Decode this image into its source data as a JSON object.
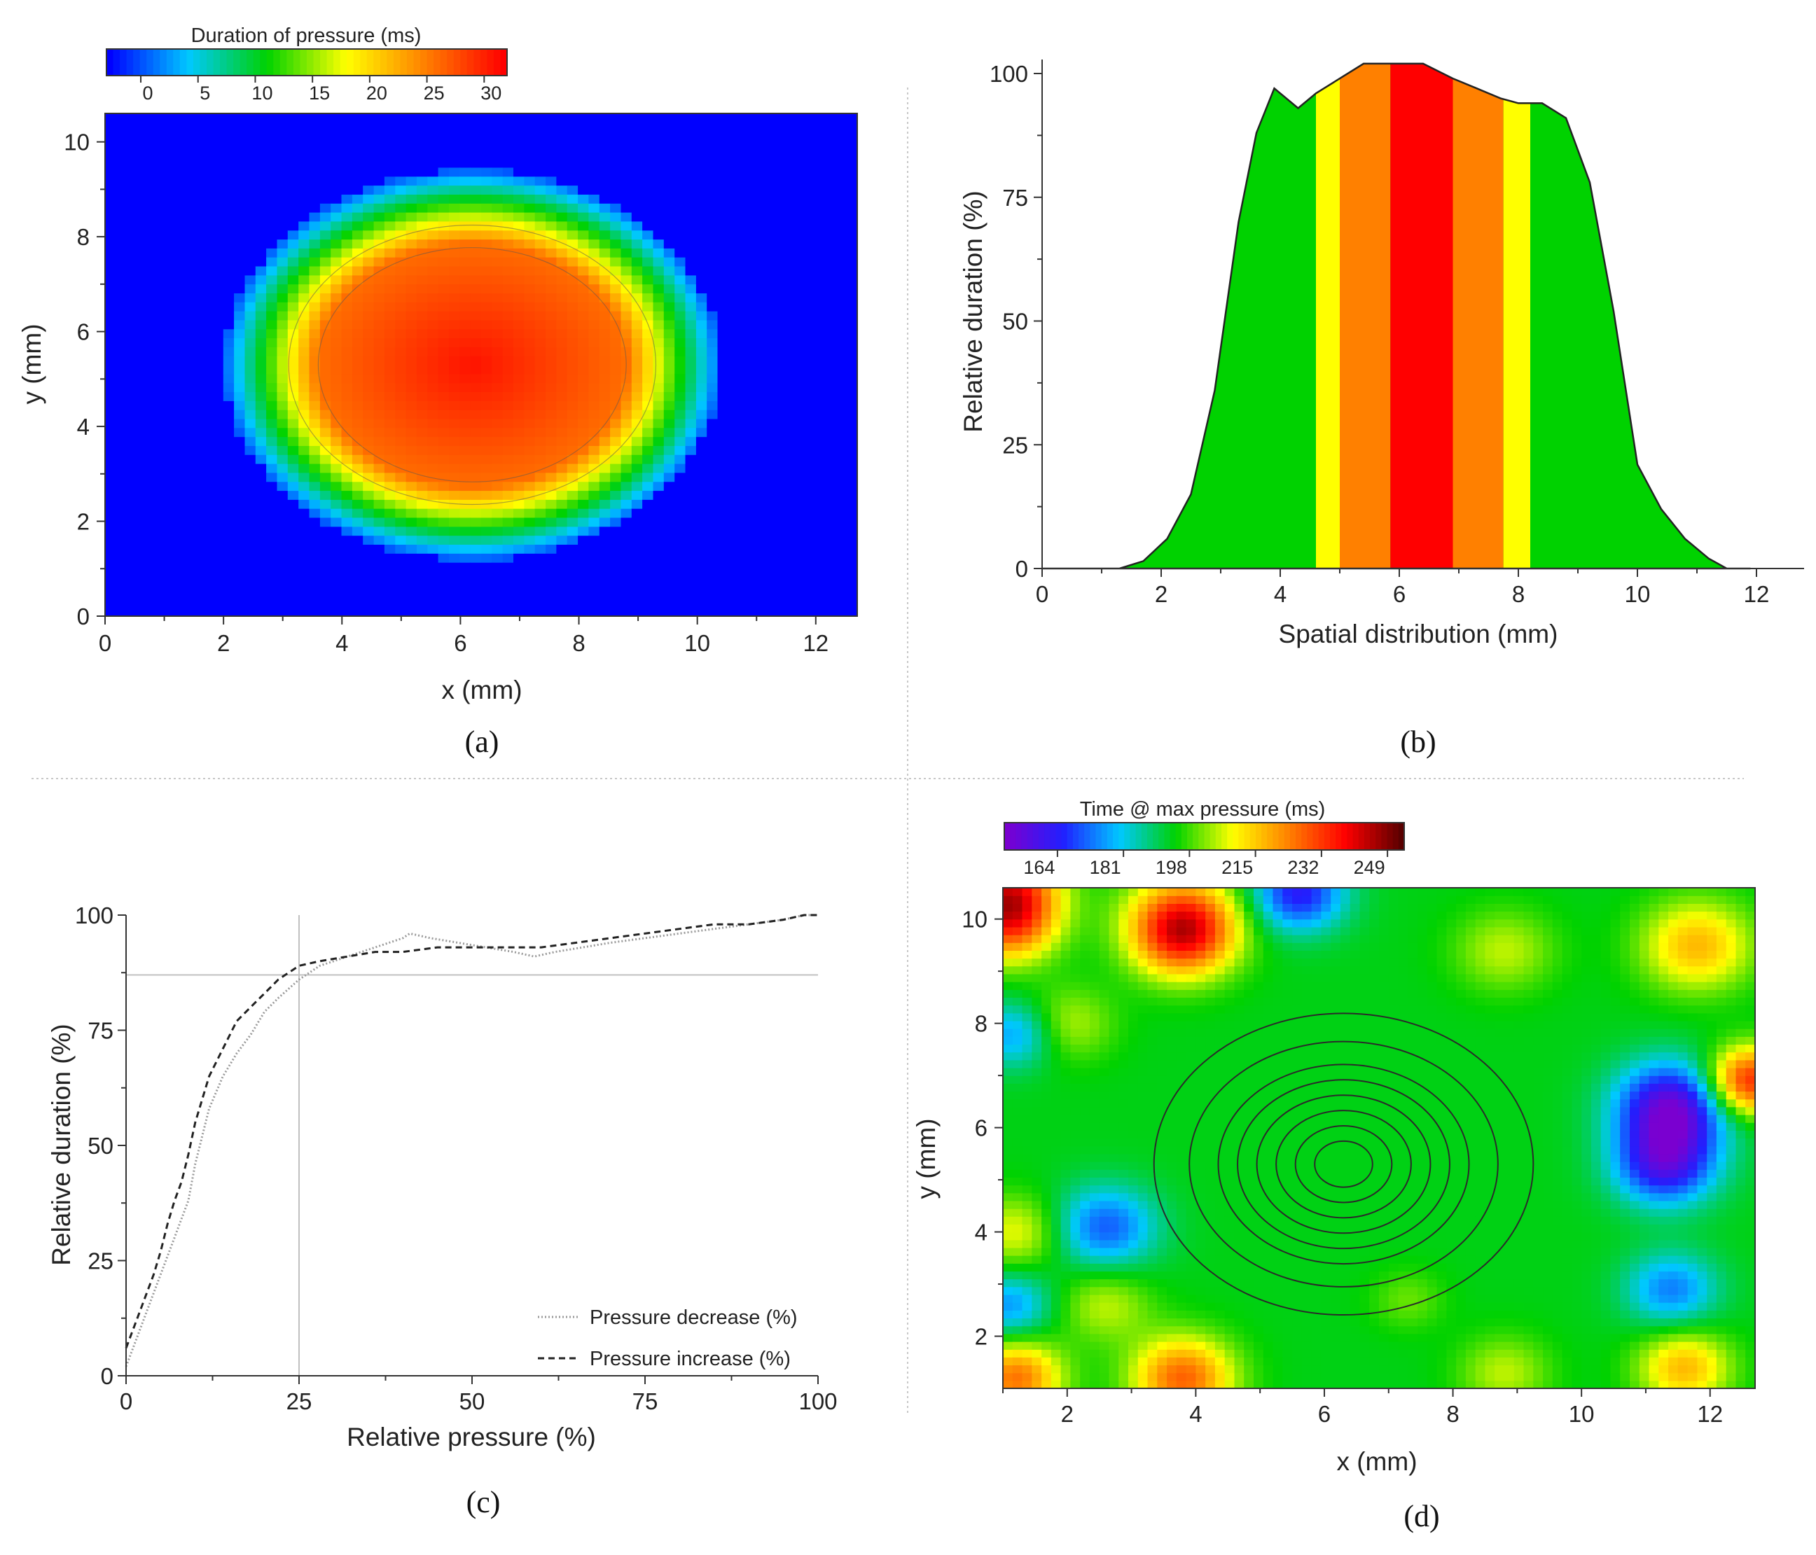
{
  "chart_data": [
    {
      "panel": "(a)",
      "type": "heatmap",
      "colorbar": {
        "title": "Duration of pressure (ms)",
        "ticks": [
          0,
          5,
          10,
          15,
          20,
          25,
          30
        ],
        "range": [
          -3,
          32
        ]
      },
      "xlabel": "x (mm)",
      "ylabel": "y (mm)",
      "xlim": [
        0,
        12.7
      ],
      "ylim": [
        0,
        10.6
      ],
      "xticks": [
        0,
        2,
        4,
        6,
        8,
        10,
        12
      ],
      "yticks": [
        0,
        2,
        4,
        6,
        8,
        10
      ],
      "peak": {
        "x": 6.2,
        "y": 5.3,
        "value": 31
      },
      "background_value": -3,
      "colors": [
        "#0000ff",
        "#00c8ff",
        "#00d200",
        "#ffff00",
        "#ff8000",
        "#ff0000"
      ]
    },
    {
      "panel": "(b)",
      "type": "area",
      "xlabel": "Spatial distribution (mm)",
      "ylabel": "Relative duration (%)",
      "xlim": [
        0,
        12.8
      ],
      "ylim": [
        0,
        100
      ],
      "xticks": [
        0,
        2,
        4,
        6,
        8,
        10,
        12
      ],
      "yticks": [
        0,
        25,
        50,
        75,
        100
      ],
      "x": [
        0,
        1.3,
        1.7,
        2.1,
        2.5,
        2.9,
        3.3,
        3.6,
        3.9,
        4.3,
        4.6,
        5.0,
        5.4,
        5.9,
        6.4,
        6.9,
        7.3,
        7.7,
        8.0,
        8.4,
        8.8,
        9.2,
        9.6,
        10.0,
        10.4,
        10.8,
        11.2,
        11.5,
        11.9
      ],
      "y": [
        0,
        0,
        1.5,
        6,
        15,
        36,
        70,
        88,
        97,
        93,
        96,
        99,
        102,
        102,
        102,
        99,
        97,
        95,
        94,
        94,
        91,
        78,
        52,
        21,
        12,
        6,
        2,
        0,
        0
      ],
      "bands": [
        {
          "x0": 4.6,
          "x1": 5.0,
          "color": "#ffff00"
        },
        {
          "x0": 5.0,
          "x1": 5.85,
          "color": "#ff8000"
        },
        {
          "x0": 5.85,
          "x1": 6.9,
          "color": "#ff0000"
        },
        {
          "x0": 6.9,
          "x1": 7.75,
          "color": "#ff8000"
        },
        {
          "x0": 7.75,
          "x1": 8.2,
          "color": "#ffff00"
        }
      ],
      "fill_color": "#00d200"
    },
    {
      "panel": "(c)",
      "type": "line",
      "xlabel": "Relative pressure (%)",
      "ylabel": "Relative duration (%)",
      "xlim": [
        0,
        100
      ],
      "ylim": [
        0,
        100
      ],
      "xticks": [
        0,
        25,
        50,
        75,
        100
      ],
      "yticks": [
        0,
        25,
        50,
        75,
        100
      ],
      "reference_lines": {
        "x": 25,
        "y": 87
      },
      "legend_position": "bottom-right",
      "series": [
        {
          "name": "Pressure decrease (%)",
          "style": "dotted",
          "x": [
            0,
            1,
            2,
            3,
            4,
            5,
            6,
            7,
            8,
            9,
            10,
            12,
            14,
            16,
            18,
            20,
            22,
            25,
            28,
            32,
            36,
            40,
            41,
            44,
            48,
            52,
            56,
            59,
            62,
            66,
            70,
            75,
            80,
            85,
            90,
            95,
            98,
            100
          ],
          "y": [
            2,
            6,
            10,
            14,
            18,
            22,
            26,
            30,
            34,
            38,
            46,
            58,
            65,
            70,
            74,
            79,
            82,
            86,
            89,
            91,
            93,
            95,
            96,
            95,
            94,
            93,
            92,
            91,
            92,
            93,
            94,
            95,
            96,
            97,
            98,
            99,
            100,
            100
          ]
        },
        {
          "name": "Pressure increase (%)",
          "style": "dashed",
          "x": [
            0,
            1,
            2,
            3,
            4,
            5,
            6,
            7,
            8,
            9,
            10,
            12,
            14,
            16,
            18,
            20,
            22,
            25,
            28,
            32,
            36,
            40,
            45,
            50,
            55,
            60,
            65,
            70,
            75,
            80,
            85,
            90,
            95,
            98,
            100
          ],
          "y": [
            6,
            10,
            14,
            18,
            22,
            27,
            33,
            38,
            42,
            48,
            55,
            65,
            71,
            77,
            80,
            83,
            86,
            89,
            90,
            91,
            92,
            92,
            93,
            93,
            93,
            93,
            94,
            95,
            96,
            97,
            98,
            98,
            99,
            100,
            100
          ]
        }
      ]
    },
    {
      "panel": "(d)",
      "type": "heatmap",
      "colorbar": {
        "title": "Time @ max pressure (ms)",
        "ticks": [
          164,
          181,
          198,
          215,
          232,
          249
        ],
        "range": [
          155,
          258
        ]
      },
      "xlabel": "x (mm)",
      "ylabel": "y (mm)",
      "xlim": [
        1,
        12.7
      ],
      "ylim": [
        1,
        10.6
      ],
      "xticks": [
        2,
        4,
        6,
        8,
        10,
        12
      ],
      "yticks": [
        2,
        4,
        6,
        8,
        10
      ],
      "background_value": 198,
      "contour_center": {
        "x": 6.3,
        "y": 5.3
      },
      "contour_radii": [
        0.45,
        0.75,
        1.05,
        1.35,
        1.65,
        1.95,
        2.4,
        2.95
      ],
      "blobs": [
        {
          "x": 1.1,
          "y": 10.5,
          "value": 240,
          "r": 0.55
        },
        {
          "x": 1.1,
          "y": 9.8,
          "value": 222,
          "r": 0.5
        },
        {
          "x": 3.8,
          "y": 10.0,
          "value": 230,
          "r": 0.6
        },
        {
          "x": 3.8,
          "y": 9.6,
          "value": 222,
          "r": 0.55
        },
        {
          "x": 5.6,
          "y": 10.5,
          "value": 168,
          "r": 0.5
        },
        {
          "x": 2.0,
          "y": 8.0,
          "value": 210,
          "r": 0.5
        },
        {
          "x": 1.2,
          "y": 7.8,
          "value": 180,
          "r": 0.45
        },
        {
          "x": 2.6,
          "y": 4.1,
          "value": 175,
          "r": 0.55
        },
        {
          "x": 1.2,
          "y": 4.0,
          "value": 213,
          "r": 0.5
        },
        {
          "x": 1.1,
          "y": 2.6,
          "value": 180,
          "r": 0.45
        },
        {
          "x": 2.6,
          "y": 2.6,
          "value": 210,
          "r": 0.5
        },
        {
          "x": 1.2,
          "y": 1.2,
          "value": 230,
          "r": 0.5
        },
        {
          "x": 3.8,
          "y": 1.2,
          "value": 232,
          "r": 0.55
        },
        {
          "x": 8.8,
          "y": 1.3,
          "value": 210,
          "r": 0.5
        },
        {
          "x": 8.8,
          "y": 9.4,
          "value": 210,
          "r": 0.55
        },
        {
          "x": 11.8,
          "y": 9.5,
          "value": 222,
          "r": 0.6
        },
        {
          "x": 11.4,
          "y": 6.4,
          "value": 158,
          "r": 0.6
        },
        {
          "x": 11.3,
          "y": 5.3,
          "value": 165,
          "r": 0.55
        },
        {
          "x": 12.6,
          "y": 6.9,
          "value": 240,
          "r": 0.45
        },
        {
          "x": 11.4,
          "y": 2.9,
          "value": 178,
          "r": 0.5
        },
        {
          "x": 11.6,
          "y": 1.4,
          "value": 222,
          "r": 0.5
        },
        {
          "x": 7.3,
          "y": 2.7,
          "value": 205,
          "r": 0.4
        }
      ],
      "colors": [
        "#7a00d0",
        "#2020ff",
        "#00c8ff",
        "#00d200",
        "#ffff00",
        "#ff8000",
        "#ff0000",
        "#5a0000"
      ]
    }
  ],
  "panel_labels": {
    "a": "(a)",
    "b": "(b)",
    "c": "(c)",
    "d": "(d)"
  }
}
